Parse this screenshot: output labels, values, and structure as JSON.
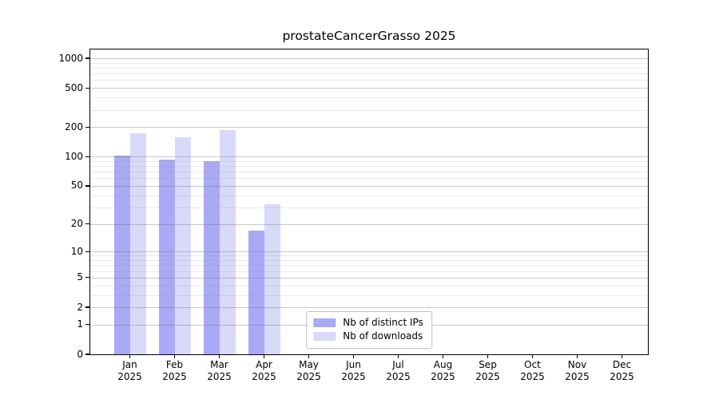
{
  "title": "prostateCancerGrasso 2025",
  "chart_data": {
    "type": "bar",
    "title": "prostateCancerGrasso 2025",
    "y_scale": "log1p",
    "grid": "on",
    "y_ticks": [
      0,
      1,
      2,
      5,
      10,
      20,
      50,
      100,
      200,
      500,
      1000
    ],
    "y_minor_gridlines": [
      3,
      4,
      6,
      7,
      8,
      9,
      30,
      40,
      60,
      70,
      80,
      90,
      300,
      400,
      600,
      700,
      800,
      900
    ],
    "y_max": 1229,
    "ylim": [
      0,
      1229
    ],
    "categories": [
      "Jan",
      "Feb",
      "Mar",
      "Apr",
      "May",
      "Jun",
      "Jul",
      "Aug",
      "Sep",
      "Oct",
      "Nov",
      "Dec"
    ],
    "year": "2025",
    "series": [
      {
        "name": "Nb of distinct IPs",
        "color": "#a9a9f5",
        "values": [
          103,
          94,
          90,
          17,
          0,
          0,
          0,
          0,
          0,
          0,
          0,
          0
        ]
      },
      {
        "name": "Nb of downloads",
        "color": "#d9d9f9",
        "values": [
          172,
          158,
          188,
          32,
          0,
          0,
          0,
          0,
          0,
          0,
          0,
          0
        ]
      }
    ],
    "legend_position": "lower center",
    "xlabel": "",
    "ylabel": ""
  },
  "colors": {
    "bar_distinct_ips": "#a9a9f5",
    "bar_downloads": "#d9d9f9",
    "grid_major": "#c9c9c9",
    "grid_minor": "#e9e9e9",
    "frame": "#000000",
    "background": "#ffffff",
    "legend_border": "#bfbfbf"
  }
}
